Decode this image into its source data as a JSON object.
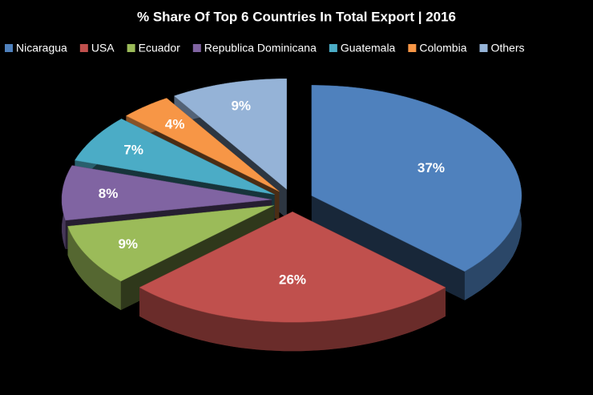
{
  "chart_data": {
    "type": "pie",
    "title": "% Share Of Top 6 Countries In Total Export | 2016",
    "categories": [
      "Nicaragua",
      "USA",
      "Ecuador",
      "Republica Dominicana",
      "Guatemala",
      "Colombia",
      "Others"
    ],
    "values": [
      37,
      26,
      9,
      8,
      7,
      4,
      9
    ],
    "value_labels": [
      "37%",
      "26%",
      "9%",
      "8%",
      "7%",
      "4%",
      "9%"
    ],
    "colors": [
      "#4f81bd",
      "#c0504d",
      "#9bbb59",
      "#8064a2",
      "#4bacc6",
      "#f79646",
      "#95b3d7"
    ],
    "legend": "top"
  }
}
